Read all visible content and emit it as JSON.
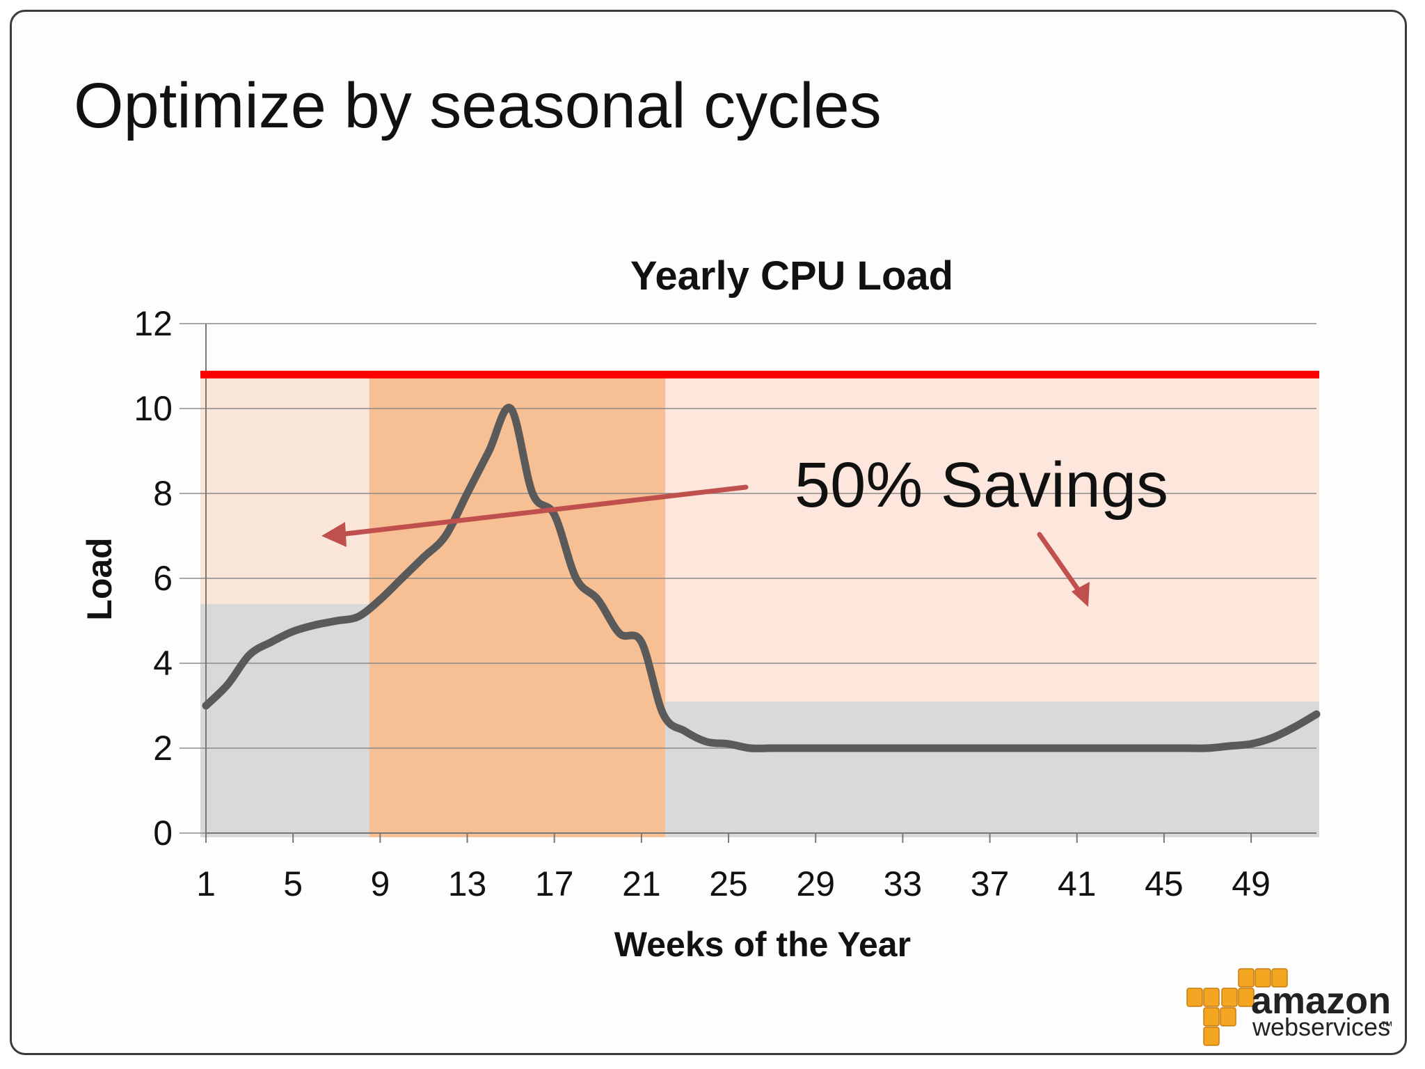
{
  "slide": {
    "title": "Optimize by seasonal cycles"
  },
  "chart_data": {
    "type": "line",
    "title": "Yearly CPU Load",
    "xlabel": "Weeks of the Year",
    "ylabel": "Load",
    "xlim": [
      1,
      52
    ],
    "ylim": [
      0,
      12
    ],
    "grid": true,
    "x_ticks": [
      1,
      5,
      9,
      13,
      17,
      21,
      25,
      29,
      33,
      37,
      41,
      45,
      49
    ],
    "y_ticks": [
      0,
      2,
      4,
      6,
      8,
      10,
      12
    ],
    "series": [
      {
        "x": [
          1,
          2,
          3,
          4,
          5,
          6,
          7,
          8,
          9,
          10,
          11,
          12,
          13,
          14,
          15,
          16,
          17,
          18,
          19,
          20,
          21,
          22,
          23,
          24,
          25,
          26,
          27,
          28,
          30,
          32,
          34,
          36,
          38,
          40,
          42,
          44,
          46,
          47,
          48,
          49,
          50,
          51,
          52
        ],
        "values": [
          3.0,
          3.5,
          4.2,
          4.5,
          4.75,
          4.9,
          5.0,
          5.1,
          5.5,
          6.0,
          6.5,
          7.0,
          8.0,
          9.0,
          10.0,
          8.0,
          7.5,
          6.0,
          5.5,
          4.7,
          4.5,
          2.8,
          2.4,
          2.15,
          2.1,
          2.0,
          2.0,
          2.0,
          2.0,
          2.0,
          2.0,
          2.0,
          2.0,
          2.0,
          2.0,
          2.0,
          2.0,
          2.0,
          2.05,
          2.1,
          2.25,
          2.5,
          2.8
        ]
      }
    ],
    "capacity_line": 10.8,
    "regions": [
      {
        "x_start": 1,
        "x_end": 8.5,
        "capacity": 5.4,
        "excess_color": "#fbe6da",
        "base_color": "#d9d9d9"
      },
      {
        "x_start": 8.5,
        "x_end": 22.1,
        "capacity": 10.8,
        "excess_color": "#f7bf94",
        "base_color": "#f7bf94"
      },
      {
        "x_start": 22.1,
        "x_end": 52,
        "capacity": 3.1,
        "excess_color": "#fde6dc",
        "base_color": "#d9d9d9"
      }
    ],
    "annotation": "50% Savings",
    "colors": {
      "line": "#5a5a5a",
      "capacity": "#ff0000",
      "arrow": "#c0504d",
      "grid": "#8a8a8a"
    }
  },
  "logo": {
    "word": "amazon",
    "sub": "webservices",
    "tm": "™",
    "color": "#f4a521"
  }
}
